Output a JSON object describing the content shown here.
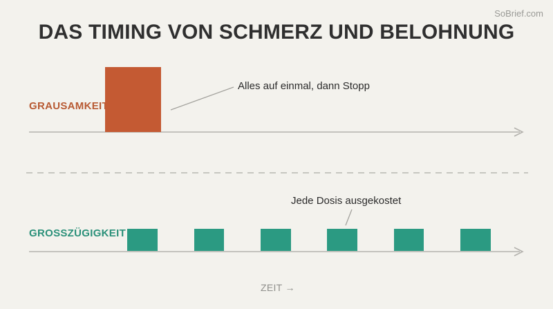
{
  "watermark": "SoBrief.com",
  "title": "DAS TIMING VON SCHMERZ UND BELOHNUNG",
  "cruelty": {
    "label": "GRAUSAMKEIT",
    "annotation": "Alles auf einmal, dann Stopp",
    "pulses": 1
  },
  "generosity": {
    "label": "GROSSZÜGIGKEIT",
    "annotation": "Jede Dosis ausgekostet",
    "pulses": 6
  },
  "time_axis": {
    "label": "ZEIT →"
  },
  "colors": {
    "background": "#f3f2ed",
    "title": "#2f2f2f",
    "cruelty": "#c45a33",
    "cruelty_label": "#b85a33",
    "generosity": "#2b9a82",
    "generosity_label": "#2a9079",
    "axis": "#b3b2ad",
    "divider": "#b8b7b2",
    "pointer": "#a3a29d"
  }
}
